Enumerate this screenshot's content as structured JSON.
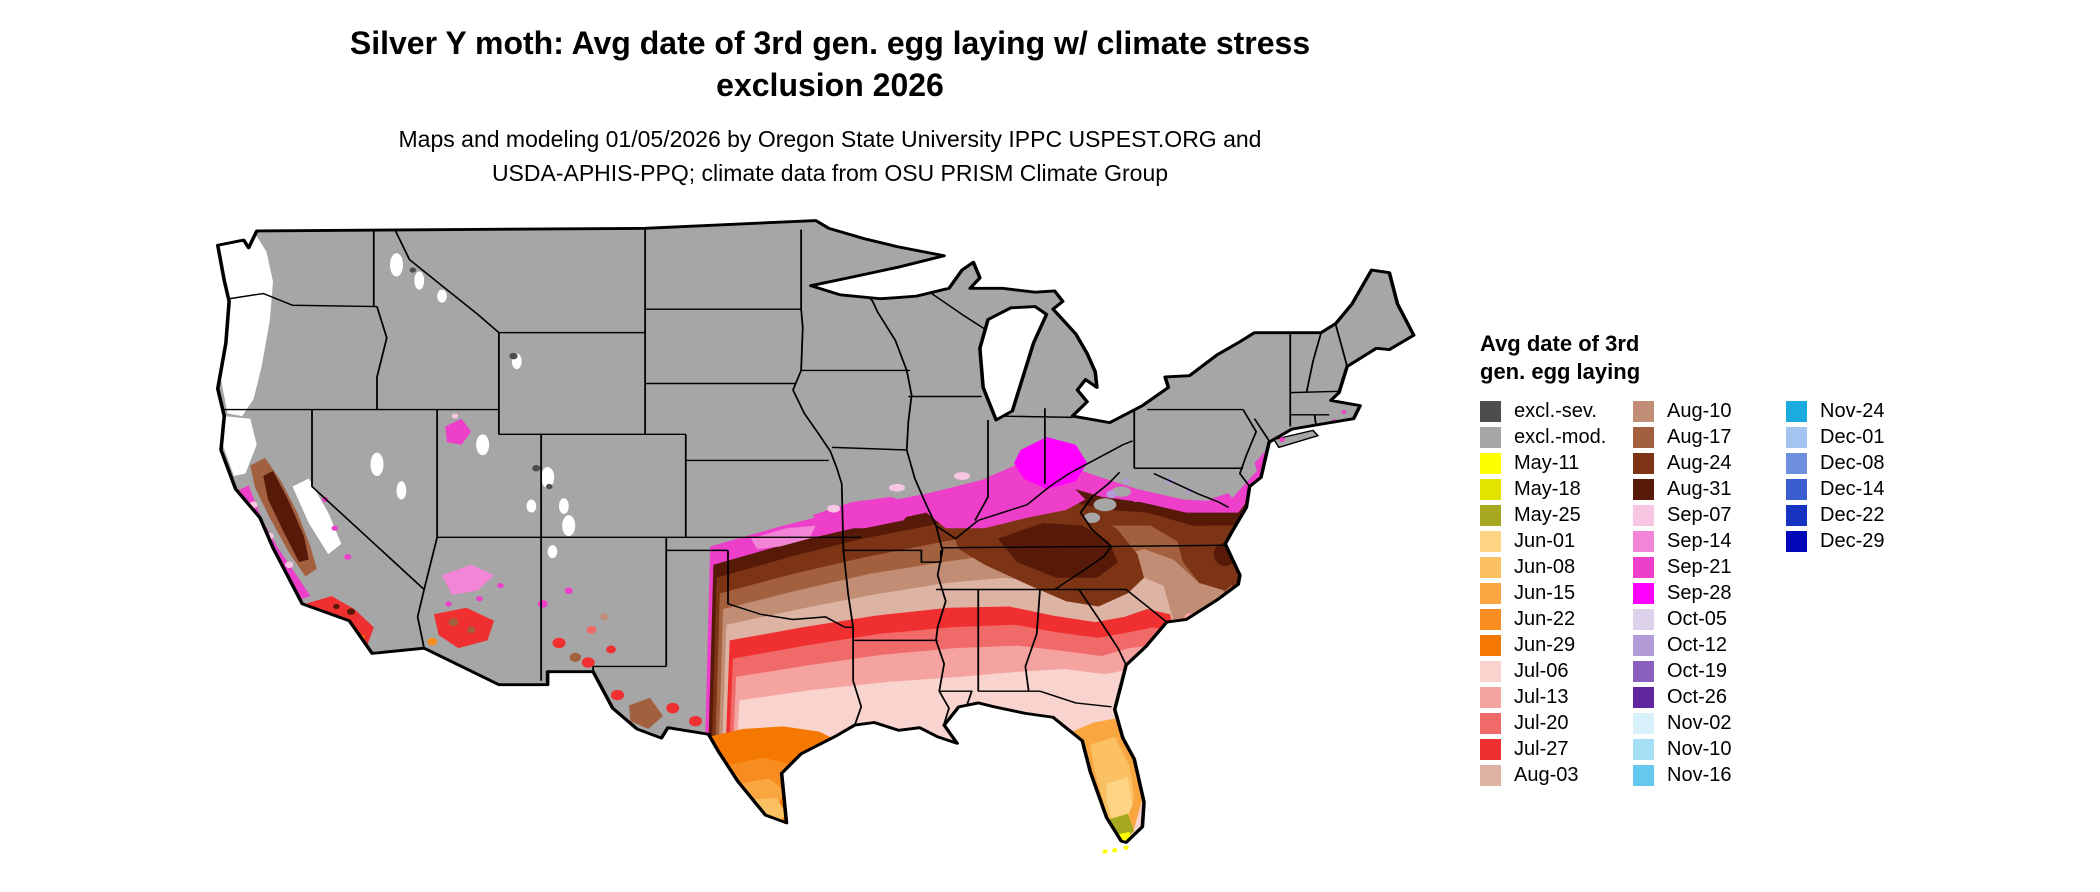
{
  "title": {
    "line1": "Silver Y moth: Avg date of 3rd gen. egg laying w/ climate stress",
    "line2": "exclusion 2026"
  },
  "subtitle": {
    "line1": "Maps and modeling 01/05/2026 by Oregon State University IPPC USPEST.ORG and",
    "line2": "USDA-APHIS-PPQ; climate data from OSU PRISM Climate Group"
  },
  "legend": {
    "heading_line1": "Avg date of 3rd",
    "heading_line2": "gen. egg laying",
    "columns": [
      [
        {
          "label": "excl.-sev.",
          "color": "#4d4d4d"
        },
        {
          "label": "excl.-mod.",
          "color": "#a6a6a6"
        },
        {
          "label": "May-11",
          "color": "#ffff00"
        },
        {
          "label": "May-18",
          "color": "#e3e300"
        },
        {
          "label": "May-25",
          "color": "#a8a820"
        },
        {
          "label": "Jun-01",
          "color": "#fcd483"
        },
        {
          "label": "Jun-08",
          "color": "#fbc062"
        },
        {
          "label": "Jun-15",
          "color": "#f9a640"
        },
        {
          "label": "Jun-22",
          "color": "#f78d20"
        },
        {
          "label": "Jun-29",
          "color": "#f57800"
        },
        {
          "label": "Jul-06",
          "color": "#f9d3cd"
        },
        {
          "label": "Jul-13",
          "color": "#f5a3a0"
        },
        {
          "label": "Jul-20",
          "color": "#f16a6a"
        },
        {
          "label": "Jul-27",
          "color": "#f03030"
        },
        {
          "label": "Aug-03",
          "color": "#ddb3a4"
        }
      ],
      [
        {
          "label": "Aug-10",
          "color": "#c18d75"
        },
        {
          "label": "Aug-17",
          "color": "#a2603f"
        },
        {
          "label": "Aug-24",
          "color": "#7c3415"
        },
        {
          "label": "Aug-31",
          "color": "#571a08"
        },
        {
          "label": "Sep-07",
          "color": "#f6c6e3"
        },
        {
          "label": "Sep-14",
          "color": "#f285d5"
        },
        {
          "label": "Sep-21",
          "color": "#ee3fcb"
        },
        {
          "label": "Sep-28",
          "color": "#ff00ff"
        },
        {
          "label": "Oct-05",
          "color": "#dcd0ea"
        },
        {
          "label": "Oct-12",
          "color": "#b29bd6"
        },
        {
          "label": "Oct-19",
          "color": "#8a60be"
        },
        {
          "label": "Oct-26",
          "color": "#61259f"
        },
        {
          "label": "Nov-02",
          "color": "#d8f0fa"
        },
        {
          "label": "Nov-10",
          "color": "#a6def5"
        },
        {
          "label": "Nov-16",
          "color": "#65c8ee"
        }
      ],
      [
        {
          "label": "Nov-24",
          "color": "#1aabe0"
        },
        {
          "label": "Dec-01",
          "color": "#a5c3f1"
        },
        {
          "label": "Dec-08",
          "color": "#6e8ede"
        },
        {
          "label": "Dec-14",
          "color": "#3a5ecf"
        },
        {
          "label": "Dec-22",
          "color": "#1832c2"
        },
        {
          "label": "Dec-29",
          "color": "#0008b8"
        }
      ]
    ]
  },
  "map": {
    "background": "#ffffff",
    "no_data_color": "#ffffff",
    "state_border_color": "#000000"
  }
}
